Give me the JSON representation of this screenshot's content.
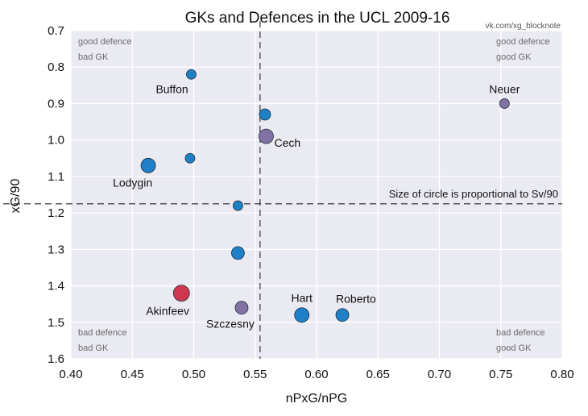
{
  "chart_data": {
    "type": "scatter",
    "title": "GKs and Defences in the UCL 2009-16",
    "source": "vk.com/xg_blocknote",
    "xlabel": "nPxG/nPG",
    "ylabel": "xG/90",
    "xlim": [
      0.4,
      0.8
    ],
    "ylim": [
      0.7,
      1.6
    ],
    "y_inverted": true,
    "grid": true,
    "x_ticks": [
      0.4,
      0.45,
      0.5,
      0.55,
      0.6,
      0.65,
      0.7,
      0.75,
      0.8
    ],
    "x_tick_labels": [
      "0.40",
      "0.45",
      "0.50",
      "0.55",
      "0.60",
      "0.65",
      "0.70",
      "0.75",
      "0.80"
    ],
    "y_ticks": [
      0.7,
      0.8,
      0.9,
      1.0,
      1.1,
      1.2,
      1.3,
      1.4,
      1.5,
      1.6
    ],
    "y_tick_labels": [
      "0.7",
      "0.8",
      "0.9",
      "1.0",
      "1.1",
      "1.2",
      "1.3",
      "1.4",
      "1.5",
      "1.6"
    ],
    "reference_lines": {
      "x": 0.554,
      "y": 1.175
    },
    "note": "Size of circle is proportional to Sv/90",
    "quadrants": {
      "top_left": [
        "good defence",
        "bad GK"
      ],
      "top_right": [
        "good defence",
        "good GK"
      ],
      "bottom_left": [
        "bad defence",
        "bad GK"
      ],
      "bottom_right": [
        "bad defence",
        "good GK"
      ]
    },
    "colors": {
      "blue": "#1f7fc7",
      "purple": "#8272a4",
      "red": "#d1364f",
      "background": "#eaeaf2"
    },
    "points": [
      {
        "name": "Buffon",
        "x": 0.498,
        "y": 0.82,
        "size": 6,
        "color": "blue",
        "label_anchor": "below-left"
      },
      {
        "name": "",
        "x": 0.558,
        "y": 0.93,
        "size": 7,
        "color": "blue"
      },
      {
        "name": "Neuer",
        "x": 0.753,
        "y": 0.9,
        "size": 6,
        "color": "purple",
        "label_anchor": "above"
      },
      {
        "name": "Cech",
        "x": 0.559,
        "y": 0.99,
        "size": 9,
        "color": "purple",
        "label_anchor": "below-right"
      },
      {
        "name": "",
        "x": 0.497,
        "y": 1.05,
        "size": 6,
        "color": "blue"
      },
      {
        "name": "Lodygin",
        "x": 0.463,
        "y": 1.07,
        "size": 9,
        "color": "blue",
        "label_anchor": "below-left"
      },
      {
        "name": "",
        "x": 0.536,
        "y": 1.18,
        "size": 6,
        "color": "blue"
      },
      {
        "name": "",
        "x": 0.536,
        "y": 1.31,
        "size": 8,
        "color": "blue"
      },
      {
        "name": "Akinfeev",
        "x": 0.49,
        "y": 1.42,
        "size": 10,
        "color": "red",
        "label_anchor": "below-left"
      },
      {
        "name": "Szczesny",
        "x": 0.539,
        "y": 1.46,
        "size": 8,
        "color": "purple",
        "label_anchor": "below-left"
      },
      {
        "name": "Hart",
        "x": 0.588,
        "y": 1.48,
        "size": 9,
        "color": "blue",
        "label_anchor": "above"
      },
      {
        "name": "Roberto",
        "x": 0.621,
        "y": 1.48,
        "size": 8,
        "color": "blue",
        "label_anchor": "above-right"
      }
    ]
  }
}
